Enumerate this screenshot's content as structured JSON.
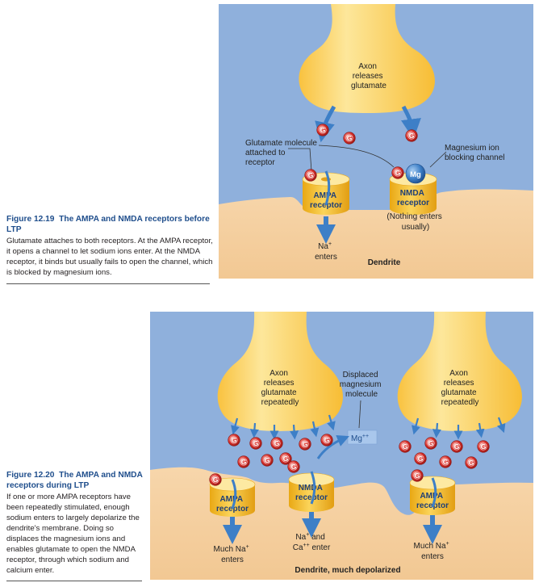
{
  "figure1": {
    "number": "Figure 12.19",
    "title": "The AMPA and NMDA receptors before LTP",
    "caption": "Glutamate attaches to both receptors. At the AMPA receptor, it opens a channel to let sodium ions enter. At the NMDA receptor, it binds but usually fails to open the channel, which is blocked by magnesium ions.",
    "axon_label": [
      "Axon",
      "releases",
      "glutamate"
    ],
    "glutamate_label": [
      "Glutamate molecule",
      "attached to",
      "receptor"
    ],
    "magnesium_label": [
      "Magnesium ion",
      "blocking channel"
    ],
    "ampa_label": [
      "AMPA",
      "receptor"
    ],
    "nmda_label": [
      "NMDA",
      "receptor"
    ],
    "nothing_label": [
      "(Nothing enters",
      "usually)"
    ],
    "na_label": [
      "Na",
      "+",
      "enters"
    ],
    "dendrite_label": "Dendrite",
    "glutamate_symbol": "G",
    "mg_symbol": "Mg"
  },
  "figure2": {
    "number": "Figure 12.20",
    "title": "The AMPA and NMDA receptors during LTP",
    "caption": "If one or more AMPA receptors have been repeatedly stimulated, enough sodium enters to largely depolarize the dendrite's membrane. Doing so displaces the magnesium ions and enables glutamate to open the NMDA receptor, through which sodium and calcium enter.",
    "axon_label": [
      "Axon",
      "releases",
      "glutamate",
      "repeatedly"
    ],
    "displaced_label": [
      "Displaced",
      "magnesium",
      "molecule"
    ],
    "mg_label": "Mg",
    "mg_charge": "++",
    "ampa_label": [
      "AMPA",
      "receptor"
    ],
    "nmda_label": [
      "NMDA",
      "receptor"
    ],
    "much_na_label": [
      "Much Na",
      "+",
      "enters"
    ],
    "na_ca_label": [
      "Na",
      "+",
      " and",
      "Ca",
      "++",
      " enter"
    ],
    "dendrite_label": "Dendrite, much depolarized",
    "glutamate_symbol": "G"
  },
  "colors": {
    "background": "#8fb0dc",
    "axon": "#fdd05b",
    "dendrite": "#f5cf9f",
    "glutamate": "#d8312c",
    "receptor": "#f6bd2a",
    "arrow": "#3d7fc7",
    "magnesium": "#2f6fbf",
    "caption_title": "#1f4e8c"
  }
}
